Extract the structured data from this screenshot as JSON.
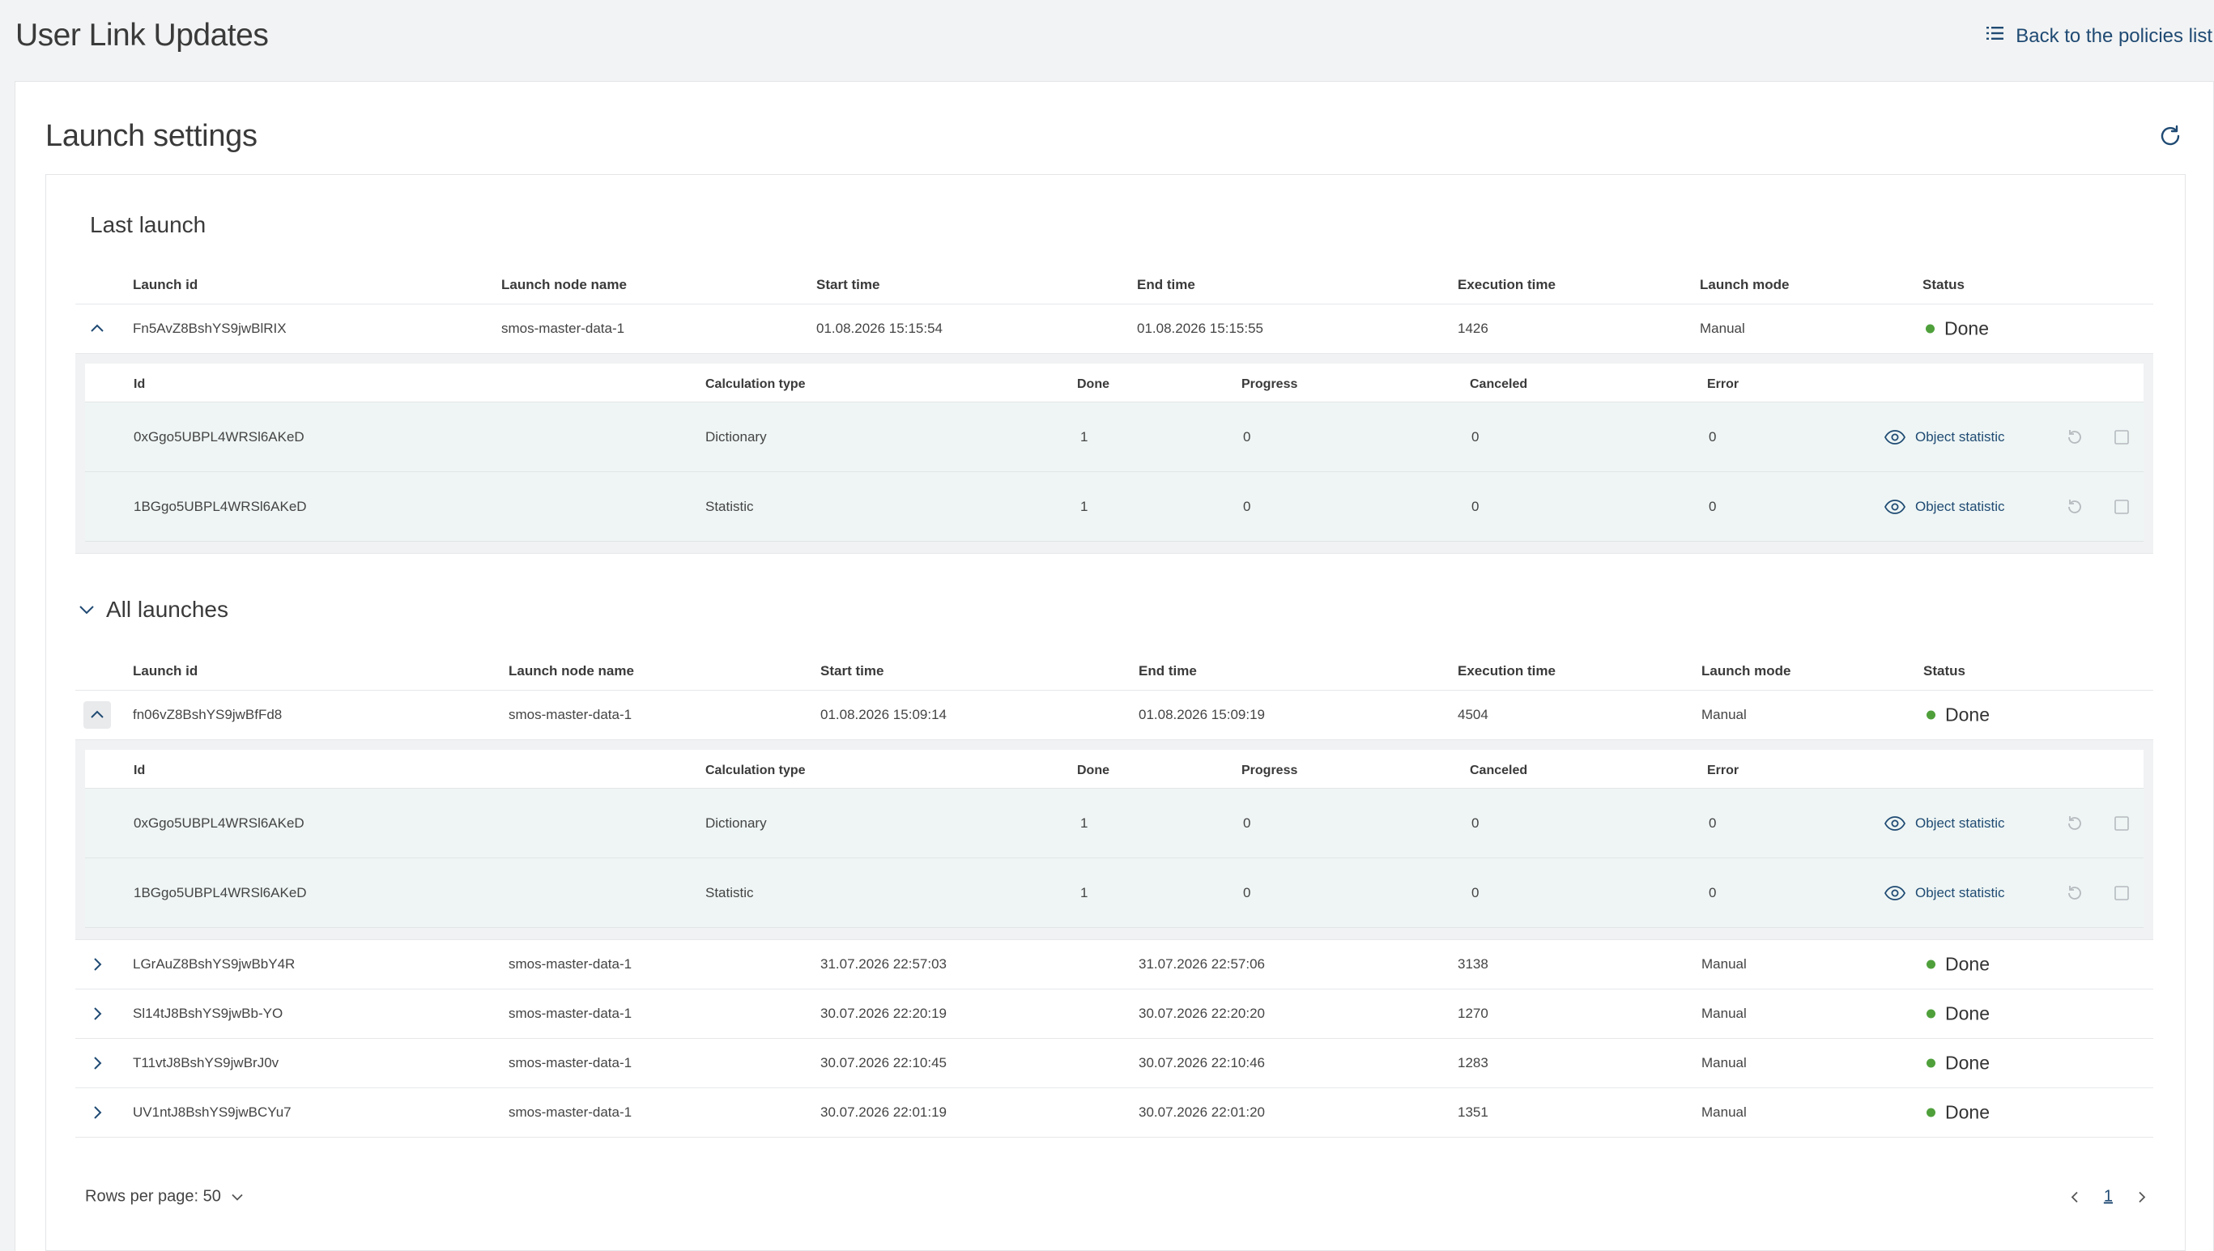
{
  "header": {
    "title": "User Link Updates",
    "back_label": "Back to the policies list"
  },
  "card": {
    "title": "Launch settings"
  },
  "last_launch": {
    "title": "Last launch",
    "columns": [
      "Launch id",
      "Launch node name",
      "Start time",
      "End time",
      "Execution time",
      "Launch mode",
      "Status"
    ],
    "row": {
      "launch_id": "Fn5AvZ8BshYS9jwBlRIX",
      "node": "smos-master-data-1",
      "start": "01.08.2026 15:15:54",
      "end": "01.08.2026 15:15:55",
      "exec": "1426",
      "mode": "Manual",
      "status": "Done"
    },
    "sub": {
      "columns": [
        "Id",
        "Calculation type",
        "Done",
        "Progress",
        "Canceled",
        "Error"
      ],
      "rows": [
        {
          "id": "0xGgo5UBPL4WRSl6AKeD",
          "type": "Dictionary",
          "done": "1",
          "progress": "0",
          "canceled": "0",
          "error": "0",
          "action": "Object statistic"
        },
        {
          "id": "1BGgo5UBPL4WRSl6AKeD",
          "type": "Statistic",
          "done": "1",
          "progress": "0",
          "canceled": "0",
          "error": "0",
          "action": "Object statistic"
        }
      ]
    }
  },
  "all_launches": {
    "title": "All launches",
    "columns": [
      "Launch id",
      "Launch node name",
      "Start time",
      "End time",
      "Execution time",
      "Launch mode",
      "Status"
    ],
    "expanded_row": {
      "launch_id": "fn06vZ8BshYS9jwBfFd8",
      "node": "smos-master-data-1",
      "start": "01.08.2026 15:09:14",
      "end": "01.08.2026 15:09:19",
      "exec": "4504",
      "mode": "Manual",
      "status": "Done"
    },
    "sub": {
      "columns": [
        "Id",
        "Calculation type",
        "Done",
        "Progress",
        "Canceled",
        "Error"
      ],
      "rows": [
        {
          "id": "0xGgo5UBPL4WRSl6AKeD",
          "type": "Dictionary",
          "done": "1",
          "progress": "0",
          "canceled": "0",
          "error": "0",
          "action": "Object statistic"
        },
        {
          "id": "1BGgo5UBPL4WRSl6AKeD",
          "type": "Statistic",
          "done": "1",
          "progress": "0",
          "canceled": "0",
          "error": "0",
          "action": "Object statistic"
        }
      ]
    },
    "rows": [
      {
        "launch_id": "LGrAuZ8BshYS9jwBbY4R",
        "node": "smos-master-data-1",
        "start": "31.07.2026 22:57:03",
        "end": "31.07.2026 22:57:06",
        "exec": "3138",
        "mode": "Manual",
        "status": "Done"
      },
      {
        "launch_id": "Sl14tJ8BshYS9jwBb-YO",
        "node": "smos-master-data-1",
        "start": "30.07.2026 22:20:19",
        "end": "30.07.2026 22:20:20",
        "exec": "1270",
        "mode": "Manual",
        "status": "Done"
      },
      {
        "launch_id": "T11vtJ8BshYS9jwBrJ0v",
        "node": "smos-master-data-1",
        "start": "30.07.2026 22:10:45",
        "end": "30.07.2026 22:10:46",
        "exec": "1283",
        "mode": "Manual",
        "status": "Done"
      },
      {
        "launch_id": "UV1ntJ8BshYS9jwBCYu7",
        "node": "smos-master-data-1",
        "start": "30.07.2026 22:01:19",
        "end": "30.07.2026 22:01:20",
        "exec": "1351",
        "mode": "Manual",
        "status": "Done"
      }
    ]
  },
  "footer": {
    "rows_per_page_label": "Rows per page: 50",
    "current_page": "1"
  },
  "colors": {
    "accent": "#1f4a73",
    "status_done": "#4fa03b",
    "sub_row_bg": "#eef5f4"
  }
}
